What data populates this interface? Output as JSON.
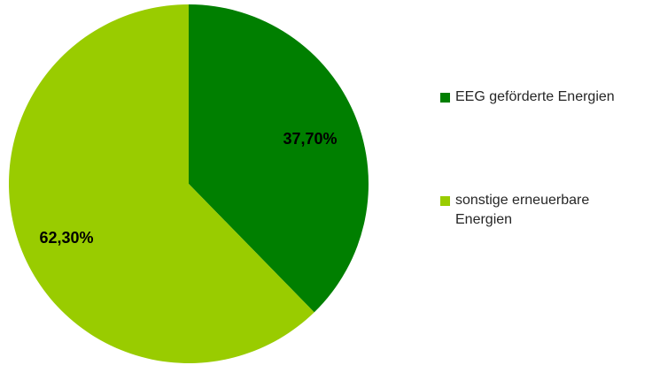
{
  "chart_data": {
    "type": "pie",
    "categories": [
      "EEG geförderte Energien",
      "sonstige erneuerbare Energien"
    ],
    "values": [
      37.7,
      62.3
    ],
    "value_labels": [
      "37,70%",
      "62,30%"
    ],
    "colors": [
      "#007f00",
      "#99cc00"
    ],
    "start_angle_deg": 0,
    "direction": "clockwise",
    "legend_position": "right"
  }
}
